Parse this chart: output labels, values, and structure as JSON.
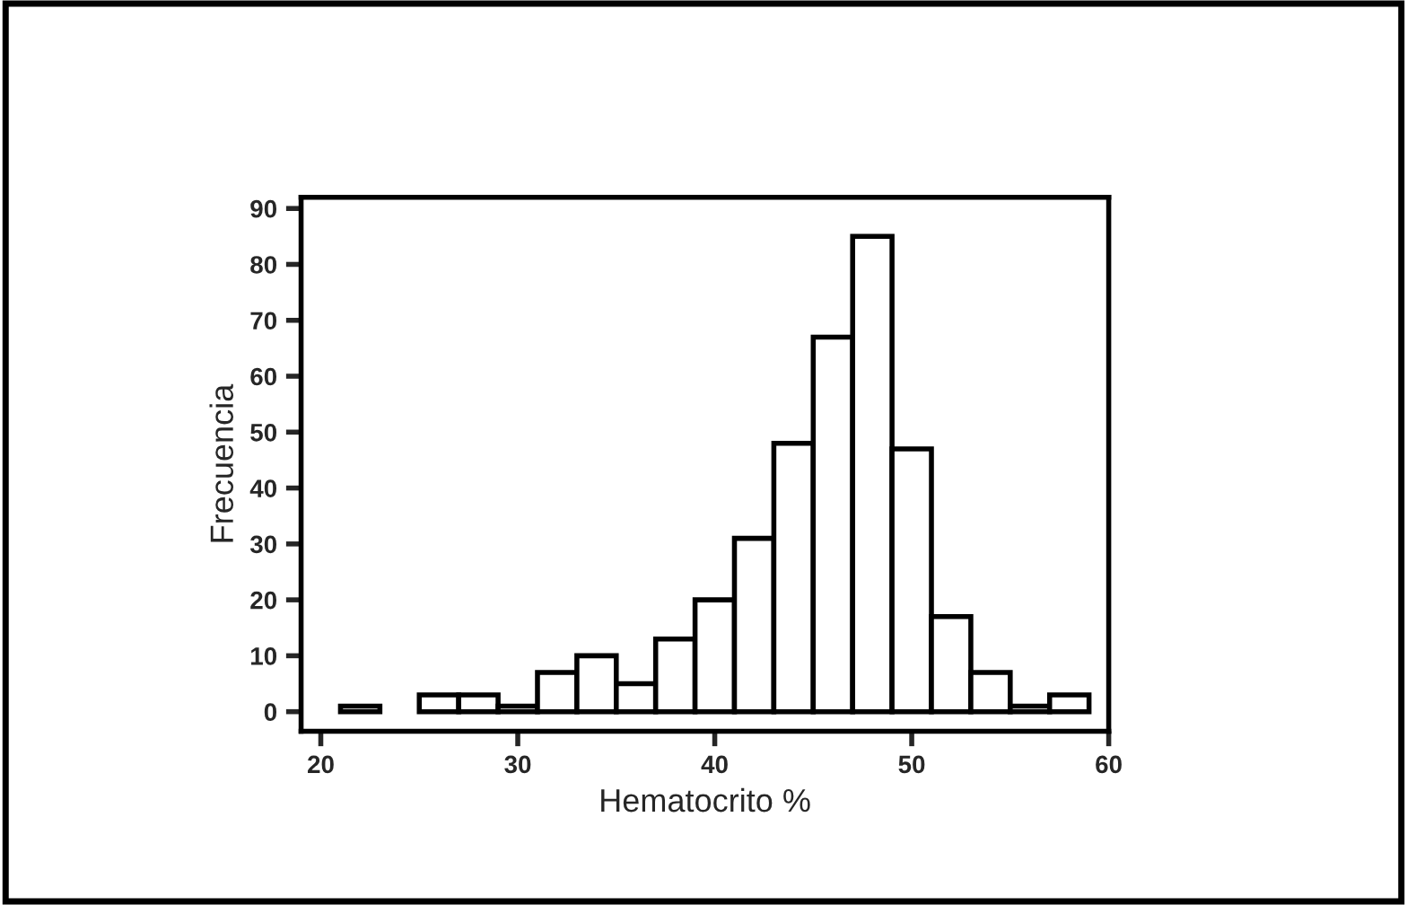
{
  "chart_data": {
    "type": "histogram",
    "xlabel": "Hematocrito %",
    "ylabel": "Frecuencia",
    "bins": [
      21,
      23,
      25,
      27,
      29,
      31,
      33,
      35,
      37,
      39,
      41,
      43,
      45,
      47,
      49,
      51,
      53,
      55,
      57,
      59
    ],
    "values": [
      1,
      0,
      3,
      3,
      1,
      7,
      10,
      5,
      13,
      20,
      31,
      48,
      67,
      85,
      47,
      17,
      7,
      1,
      3
    ],
    "color": "#ffffff",
    "xlim": [
      19,
      60
    ],
    "ylim": [
      -3.5,
      92
    ],
    "xticks": [
      20,
      30,
      40,
      50,
      60
    ],
    "yticks": [
      0,
      10,
      20,
      30,
      40,
      50,
      60,
      70,
      80,
      90
    ],
    "grid": false
  }
}
